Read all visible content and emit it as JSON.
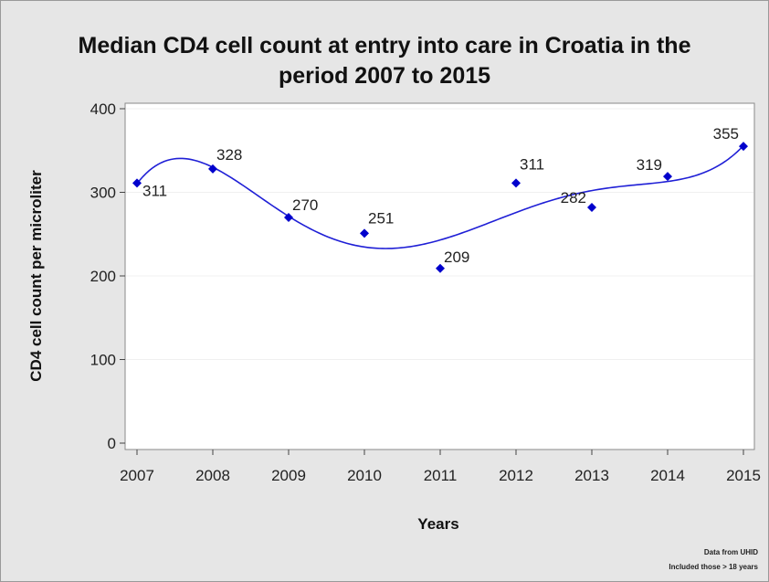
{
  "chart_data": {
    "type": "line",
    "title_lines": [
      "Median CD4 cell count at entry into care in Croatia in the",
      "period 2007 to 2015"
    ],
    "xlabel": "Years",
    "ylabel": "CD4 cell count per microliter",
    "x": [
      "2007",
      "2008",
      "2009",
      "2010",
      "2011",
      "2012",
      "2013",
      "2014",
      "2015"
    ],
    "y_ticks": [
      "0",
      "100",
      "200",
      "300",
      "400"
    ],
    "ylim": [
      0,
      400
    ],
    "grid": "horizontal",
    "series": [
      {
        "values": [
          311,
          328,
          270,
          251,
          209,
          311,
          282,
          319,
          355
        ],
        "labels": [
          "311",
          "328",
          "270",
          "251",
          "209",
          "311",
          "282",
          "319",
          "355"
        ],
        "color": "#0000cc",
        "marker": "diamond",
        "trend_line": "smooth fit"
      }
    ]
  },
  "footnote": [
    "Data from UHID",
    "Included those > 18 years"
  ]
}
